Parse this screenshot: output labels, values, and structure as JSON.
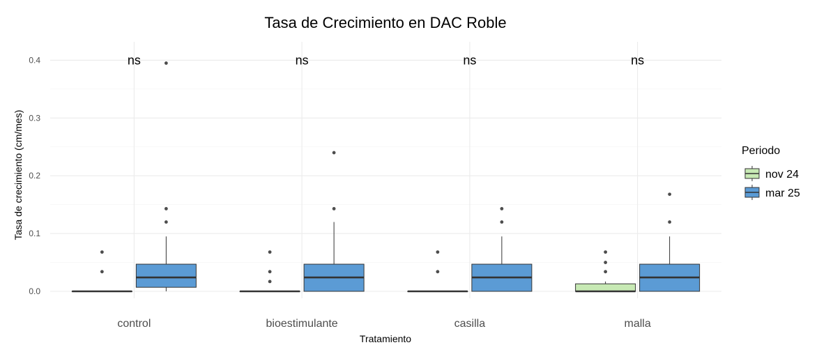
{
  "chart_data": {
    "type": "boxplot",
    "title": "Tasa de Crecimiento en DAC Roble",
    "xlabel": "Tratamiento",
    "ylabel": "Tasa de crecimiento (cm/mes)",
    "ylim": [
      -0.01,
      0.42
    ],
    "yticks": [
      0.0,
      0.1,
      0.2,
      0.3,
      0.4
    ],
    "ytick_labels": [
      "0.0",
      "0.1",
      "0.2",
      "0.3",
      "0.4"
    ],
    "grid": true,
    "legend": {
      "title": "Periodo",
      "position": "right"
    },
    "categories": [
      "control",
      "bioestimulante",
      "casilla",
      "malla"
    ],
    "significance_labels": [
      "ns",
      "ns",
      "ns",
      "ns"
    ],
    "significance_y": 0.4,
    "series": [
      {
        "name": "nov 24",
        "color": "#c7e9b4",
        "boxes": [
          {
            "min": 0,
            "q1": 0,
            "median": 0,
            "q3": 0,
            "max": 0,
            "outliers": [
              0.034,
              0.068
            ]
          },
          {
            "min": 0,
            "q1": 0,
            "median": 0,
            "q3": 0,
            "max": 0,
            "outliers": [
              0.017,
              0.034,
              0.068
            ]
          },
          {
            "min": 0,
            "q1": 0,
            "median": 0,
            "q3": 0,
            "max": 0,
            "outliers": [
              0.034,
              0.068
            ]
          },
          {
            "min": 0,
            "q1": 0,
            "median": 0,
            "q3": 0.013,
            "max": 0.017,
            "outliers": [
              0.034,
              0.05,
              0.068
            ]
          }
        ]
      },
      {
        "name": "mar 25",
        "color": "#5b9bd5",
        "boxes": [
          {
            "min": 0,
            "q1": 0.007,
            "median": 0.024,
            "q3": 0.047,
            "max": 0.095,
            "outliers": [
              0.12,
              0.143,
              0.395
            ]
          },
          {
            "min": 0,
            "q1": 0,
            "median": 0.024,
            "q3": 0.047,
            "max": 0.12,
            "outliers": [
              0.143,
              0.24
            ]
          },
          {
            "min": 0,
            "q1": 0,
            "median": 0.024,
            "q3": 0.047,
            "max": 0.095,
            "outliers": [
              0.12,
              0.143
            ]
          },
          {
            "min": 0,
            "q1": 0,
            "median": 0.024,
            "q3": 0.047,
            "max": 0.095,
            "outliers": [
              0.12,
              0.168
            ]
          }
        ]
      }
    ]
  }
}
